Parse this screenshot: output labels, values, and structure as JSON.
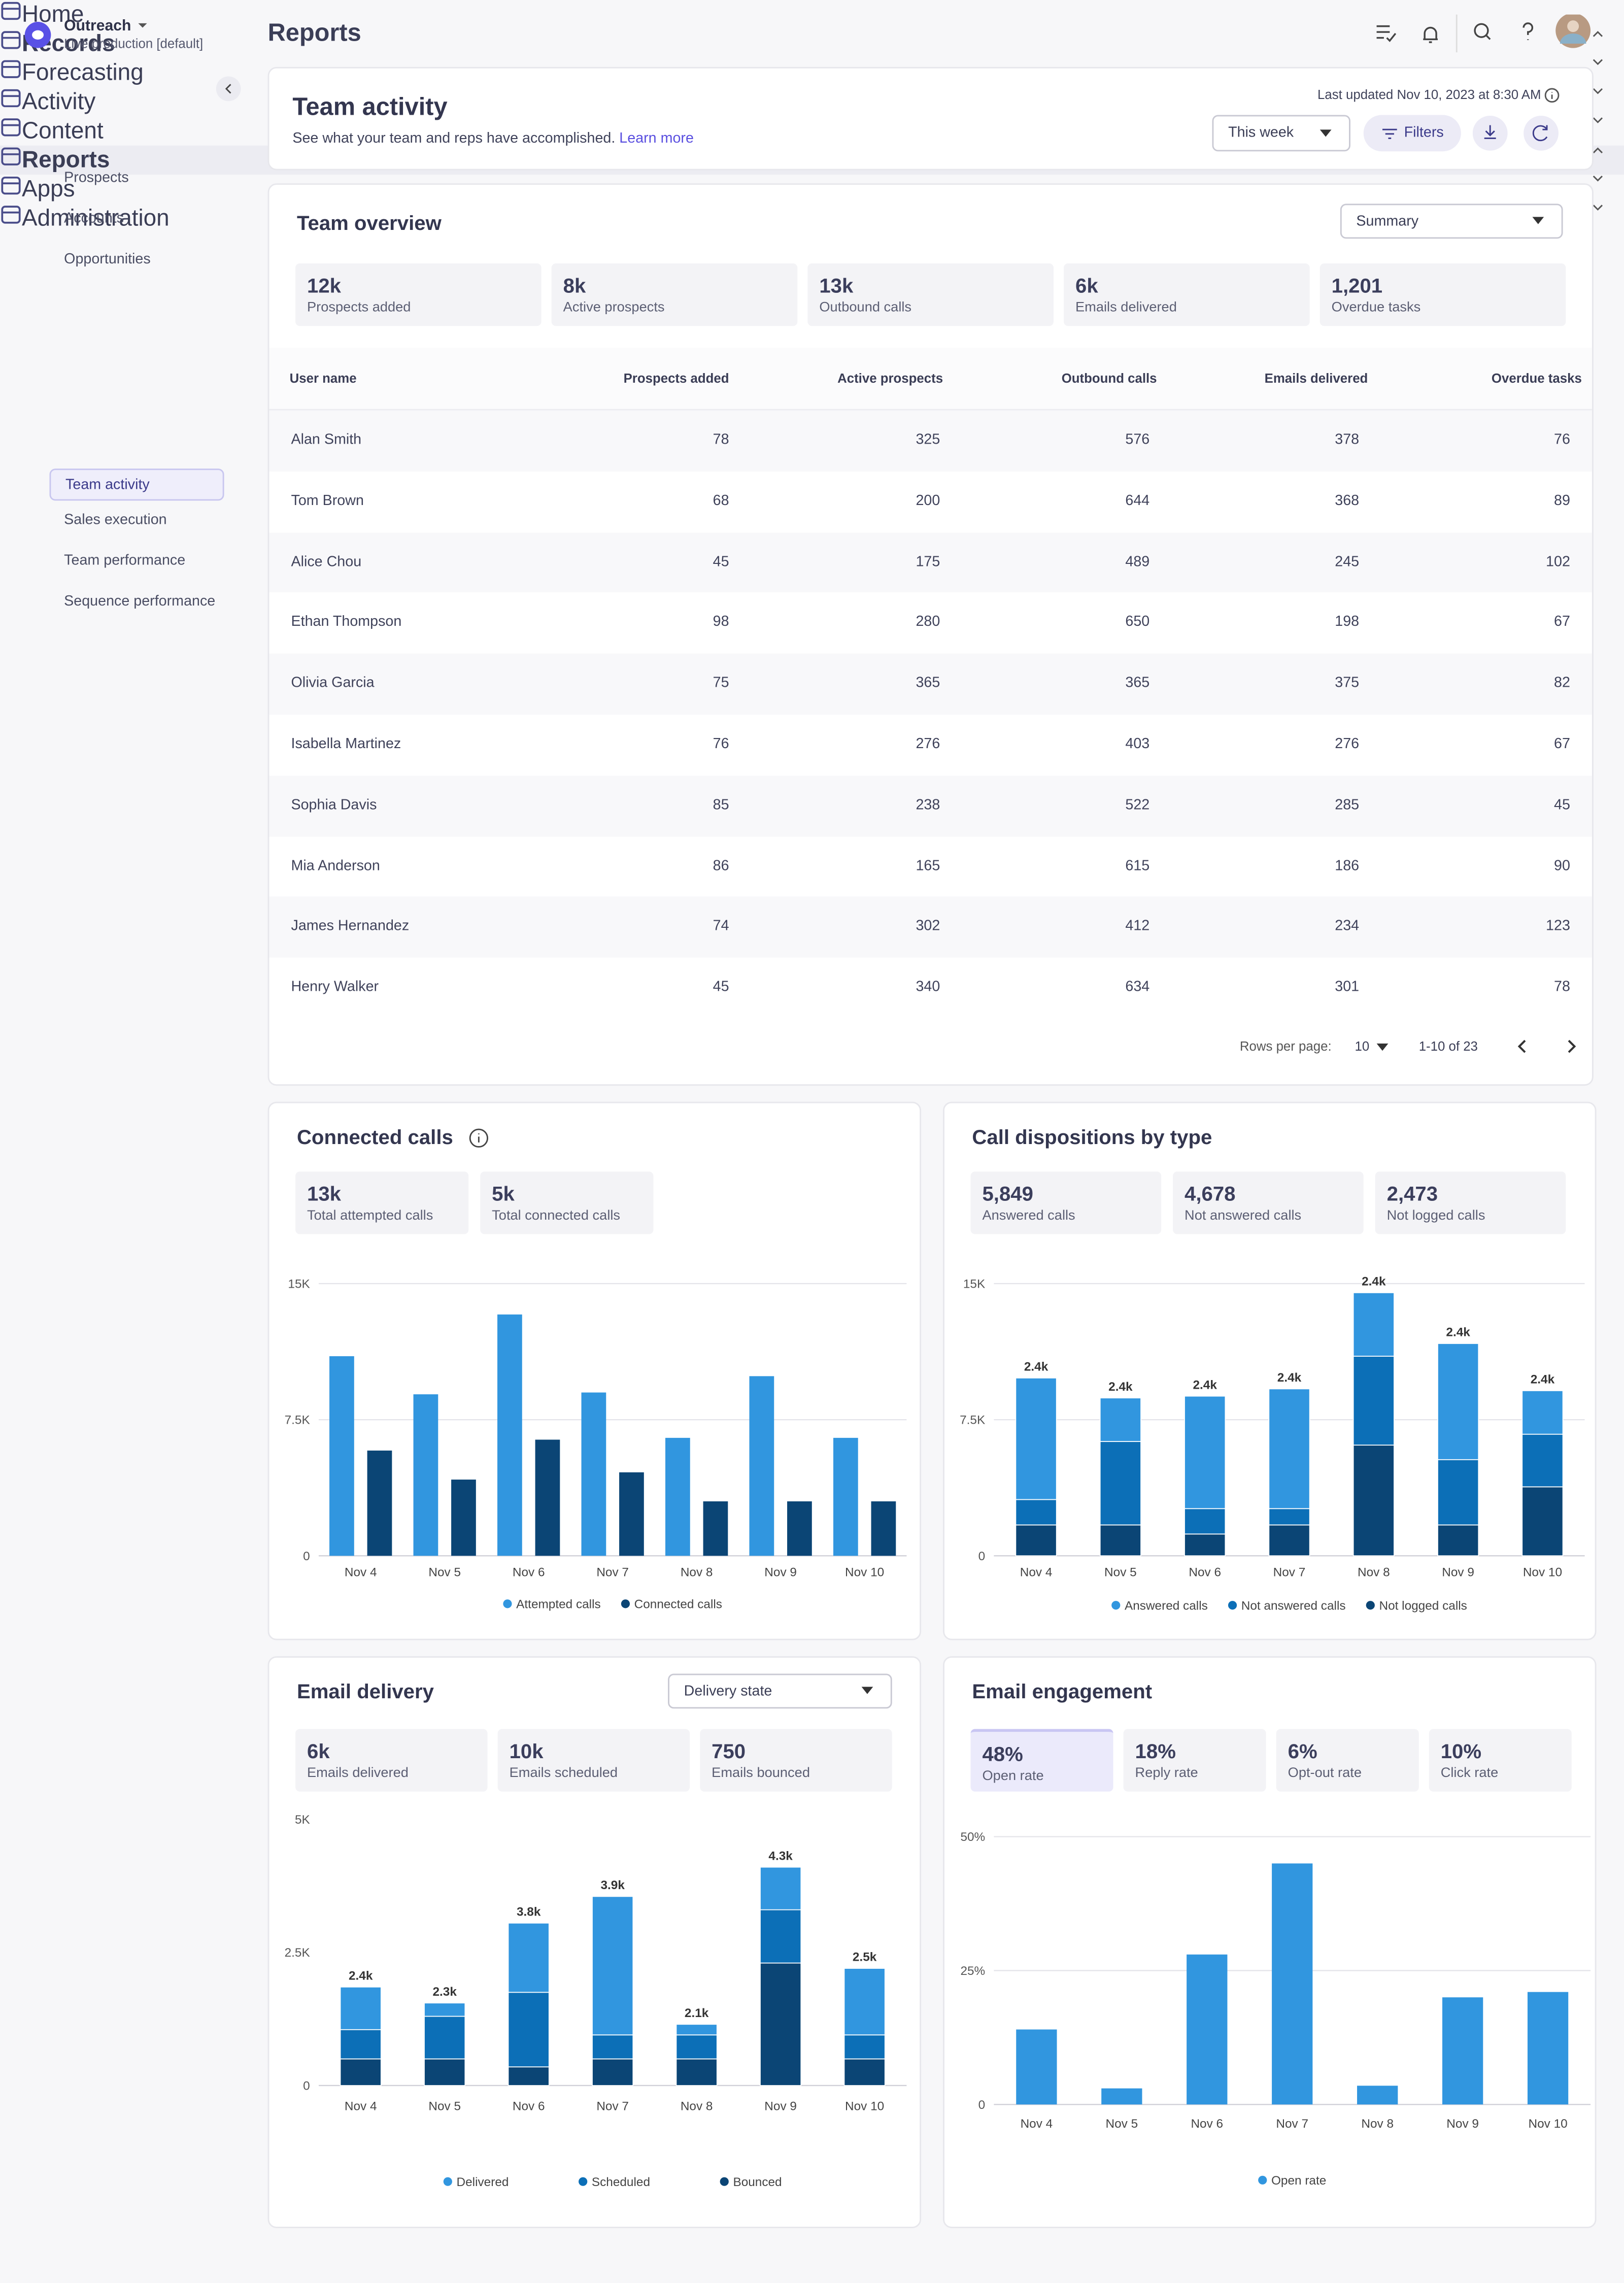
{
  "sidebar": {
    "org": "Outreach",
    "env": "Live production [default]",
    "nav": [
      "Home",
      "Records",
      "Prospects",
      "Accounts",
      "Opportunities",
      "Forecasting",
      "Activity",
      "Content",
      "Reports",
      "Team activity",
      "Sales execution",
      "Team performance",
      "Sequence performance",
      "Apps",
      "Administration"
    ]
  },
  "page_title": "Reports",
  "header": {
    "title": "Team activity",
    "subtitle": "See what your team and reps have accomplished.",
    "link": "Learn more",
    "updated": "Last updated Nov 10, 2023 at 8:30 AM",
    "range": "This week",
    "filters": "Filters"
  },
  "overview": {
    "title": "Team overview",
    "view": "Summary",
    "stats": [
      {
        "value": "12k",
        "label": "Prospects added"
      },
      {
        "value": "8k",
        "label": "Active prospects"
      },
      {
        "value": "13k",
        "label": "Outbound calls"
      },
      {
        "value": "6k",
        "label": "Emails delivered"
      },
      {
        "value": "1,201",
        "label": "Overdue tasks"
      }
    ]
  },
  "table": {
    "columns": [
      "User name",
      "Prospects added",
      "Active prospects",
      "Outbound calls",
      "Emails delivered",
      "Overdue tasks"
    ],
    "rows": [
      [
        "Alan Smith",
        78,
        325,
        576,
        378,
        76
      ],
      [
        "Tom Brown",
        68,
        200,
        644,
        368,
        89
      ],
      [
        "Alice Chou",
        45,
        175,
        489,
        245,
        102
      ],
      [
        "Ethan Thompson",
        98,
        280,
        650,
        198,
        67
      ],
      [
        "Olivia Garcia",
        75,
        365,
        365,
        375,
        82
      ],
      [
        "Isabella Martinez",
        76,
        276,
        403,
        276,
        67
      ],
      [
        "Sophia Davis",
        85,
        238,
        522,
        285,
        45
      ],
      [
        "Mia Anderson",
        86,
        165,
        615,
        186,
        90
      ],
      [
        "James Hernandez",
        74,
        302,
        412,
        234,
        123
      ],
      [
        "Henry Walker",
        45,
        340,
        634,
        301,
        78
      ]
    ],
    "rows_per_page_label": "Rows per page:",
    "rows_per_page": 10,
    "range": "1-10 of 23"
  },
  "chart_data": [
    {
      "type": "bar",
      "title": "Connected calls",
      "stats": [
        {
          "value": "13k",
          "label": "Total attempted calls"
        },
        {
          "value": "5k",
          "label": "Total connected calls"
        }
      ],
      "categories": [
        "Nov 4",
        "Nov 5",
        "Nov 6",
        "Nov 7",
        "Nov 8",
        "Nov 9",
        "Nov 10"
      ],
      "series": [
        {
          "name": "Attempted calls",
          "color": "#3196df",
          "values": [
            11000,
            8900,
            13300,
            9000,
            6500,
            9900,
            6500
          ]
        },
        {
          "name": "Connected calls",
          "color": "#0b4575",
          "values": [
            5800,
            4200,
            6400,
            4600,
            3000,
            3000,
            3000
          ]
        }
      ],
      "ylim": [
        0,
        15000
      ],
      "yticks": [
        0,
        {
          "value": 7500,
          "label": "7.5K"
        },
        {
          "value": 15000,
          "label": "15K"
        }
      ],
      "grid": true
    },
    {
      "type": "stacked_bar",
      "title": "Call dispositions by type",
      "stats": [
        {
          "value": "5,849",
          "label": "Answered calls"
        },
        {
          "value": "4,678",
          "label": "Not answered calls"
        },
        {
          "value": "2,473",
          "label": "Not logged calls"
        }
      ],
      "categories": [
        "Nov 4",
        "Nov 5",
        "Nov 6",
        "Nov 7",
        "Nov 8",
        "Nov 9",
        "Nov 10"
      ],
      "series": [
        {
          "name": "Answered calls",
          "color": "#3196df",
          "values": [
            6700,
            2400,
            6200,
            6600,
            3500,
            6400,
            2400
          ]
        },
        {
          "name": "Not answered calls",
          "color": "#0c6fb7",
          "values": [
            1400,
            4600,
            1400,
            900,
            4900,
            3600,
            2900
          ]
        },
        {
          "name": "Not logged calls",
          "color": "#0b4575",
          "values": [
            1700,
            1700,
            1200,
            1700,
            6100,
            1700,
            3800
          ]
        }
      ],
      "annotations": [
        "2.4k",
        "2.4k",
        "2.4k",
        "2.4k",
        "2.4k",
        "2.4k",
        "2.4k"
      ],
      "ylim": [
        0,
        15000
      ],
      "yticks": [
        0,
        {
          "value": 7500,
          "label": "7.5K"
        },
        {
          "value": 15000,
          "label": "15K"
        }
      ],
      "grid": true
    },
    {
      "type": "stacked_bar",
      "title": "Email delivery",
      "dropdown": "Delivery state",
      "stats": [
        {
          "value": "6k",
          "label": "Emails delivered"
        },
        {
          "value": "10k",
          "label": "Emails scheduled"
        },
        {
          "value": "750",
          "label": "Emails bounced"
        }
      ],
      "categories": [
        "Nov 4",
        "Nov 5",
        "Nov 6",
        "Nov 7",
        "Nov 8",
        "Nov 9",
        "Nov 10"
      ],
      "series": [
        {
          "name": "Delivered",
          "color": "#3196df",
          "values": [
            800,
            250,
            1300,
            2600,
            200,
            800,
            1250
          ]
        },
        {
          "name": "Scheduled",
          "color": "#0c6fb7",
          "values": [
            550,
            800,
            1400,
            450,
            450,
            1000,
            450
          ]
        },
        {
          "name": "Bounced",
          "color": "#0b4575",
          "values": [
            500,
            500,
            350,
            500,
            500,
            2300,
            500
          ]
        }
      ],
      "annotations": [
        "2.4k",
        "2.3k",
        "3.8k",
        "3.9k",
        "2.1k",
        "4.3k",
        "2.5k"
      ],
      "ylim": [
        0,
        5000
      ],
      "yticks": [
        0,
        {
          "value": 2500,
          "label": "2.5K"
        },
        {
          "value": 5000,
          "label": "5K"
        }
      ],
      "grid": false
    },
    {
      "type": "bar",
      "title": "Email engagement",
      "stats": [
        {
          "value": "48%",
          "label": "Open rate"
        },
        {
          "value": "18%",
          "label": "Reply rate"
        },
        {
          "value": "6%",
          "label": "Opt-out rate"
        },
        {
          "value": "10%",
          "label": "Click rate"
        }
      ],
      "categories": [
        "Nov 4",
        "Nov 5",
        "Nov 6",
        "Nov 7",
        "Nov 8",
        "Nov 9",
        "Nov 10"
      ],
      "series": [
        {
          "name": "Open rate",
          "color": "#3196df",
          "values": [
            14,
            3,
            28,
            45,
            3.5,
            20,
            21
          ]
        }
      ],
      "ylim": [
        0,
        50
      ],
      "yticks": [
        0,
        {
          "value": 25,
          "label": "25%"
        },
        {
          "value": 50,
          "label": "50%"
        }
      ],
      "grid": true
    }
  ]
}
